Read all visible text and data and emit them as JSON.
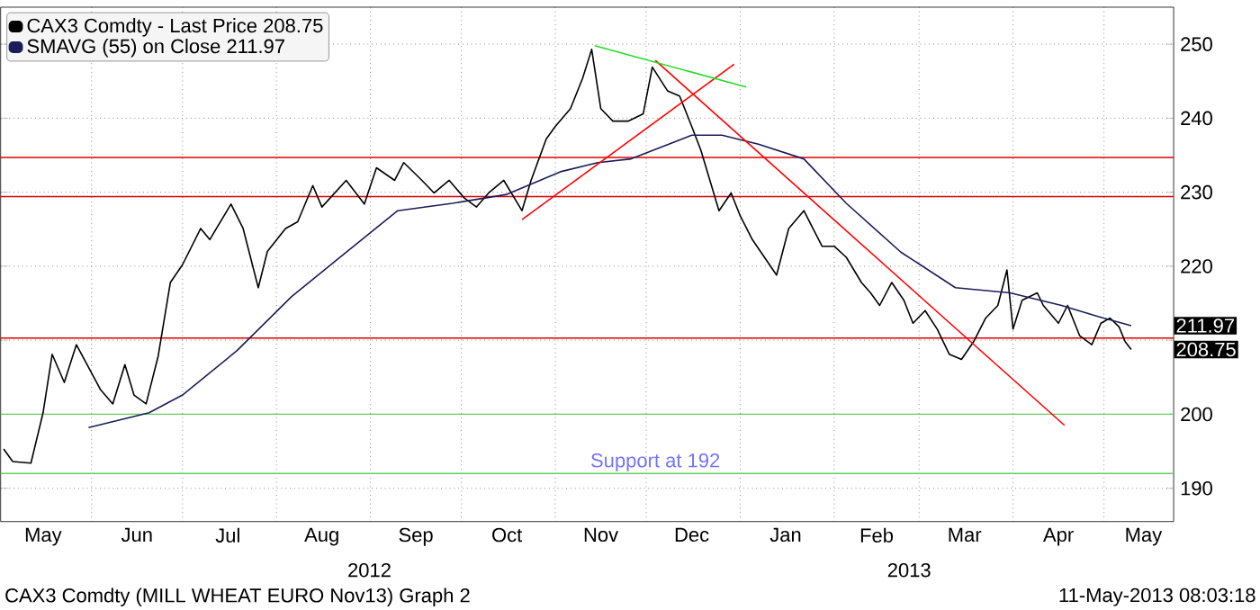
{
  "chart_data": {
    "type": "line",
    "xlim": [
      "2012-05-02",
      "2013-05-24"
    ],
    "xticks": [
      {
        "value": "2012-05-16",
        "label": "May"
      },
      {
        "value": "2012-06-01",
        "label": null
      },
      {
        "value": "2012-06-16",
        "label": "Jun"
      },
      {
        "value": "2012-07-01",
        "label": null
      },
      {
        "value": "2012-07-16",
        "label": "Jul"
      },
      {
        "value": "2012-08-01",
        "label": null
      },
      {
        "value": "2012-08-16",
        "label": "Aug"
      },
      {
        "value": "2012-09-01",
        "label": null
      },
      {
        "value": "2012-09-16",
        "label": "Sep"
      },
      {
        "value": "2012-10-01",
        "label": null
      },
      {
        "value": "2012-10-16",
        "label": "Oct"
      },
      {
        "value": "2012-11-01",
        "label": null
      },
      {
        "value": "2012-11-16",
        "label": "Nov"
      },
      {
        "value": "2012-12-01",
        "label": null
      },
      {
        "value": "2012-12-16",
        "label": "Dec"
      },
      {
        "value": "2013-01-01",
        "label": null
      },
      {
        "value": "2013-01-16",
        "label": "Jan"
      },
      {
        "value": "2013-02-01",
        "label": null
      },
      {
        "value": "2013-02-15",
        "label": "Feb"
      },
      {
        "value": "2013-03-01",
        "label": null
      },
      {
        "value": "2013-03-16",
        "label": "Mar"
      },
      {
        "value": "2013-04-01",
        "label": null
      },
      {
        "value": "2013-04-16",
        "label": "Apr"
      },
      {
        "value": "2013-05-01",
        "label": null
      },
      {
        "value": "2013-05-14",
        "label": "May"
      }
    ],
    "ylim": [
      185.5,
      255
    ],
    "yticks": [
      190,
      200,
      {
        "value": 210,
        "label": null
      },
      220,
      230,
      240,
      250
    ],
    "grid": true,
    "legend": "top left",
    "series": [
      {
        "name": "CAX3 Comdty - Last Price 208.75",
        "color": "#000000",
        "x": [
          "2012-05-03",
          "2012-05-06",
          "2012-05-12",
          "2012-05-16",
          "2012-05-19",
          "2012-05-23",
          "2012-05-27",
          "2012-06-04",
          "2012-06-08",
          "2012-06-12",
          "2012-06-15",
          "2012-06-19",
          "2012-06-23",
          "2012-06-27",
          "2012-07-01",
          "2012-07-07",
          "2012-07-10",
          "2012-07-17",
          "2012-07-21",
          "2012-07-26",
          "2012-07-29",
          "2012-08-04",
          "2012-08-08",
          "2012-08-13",
          "2012-08-16",
          "2012-08-24",
          "2012-08-30",
          "2012-09-03",
          "2012-09-09",
          "2012-09-12",
          "2012-09-18",
          "2012-09-22",
          "2012-09-27",
          "2012-10-02",
          "2012-10-06",
          "2012-10-10",
          "2012-10-15",
          "2012-10-21",
          "2012-10-24",
          "2012-10-29",
          "2012-11-01",
          "2012-11-06",
          "2012-11-10",
          "2012-11-13",
          "2012-11-16",
          "2012-11-20",
          "2012-11-25",
          "2012-11-30",
          "2012-12-03",
          "2012-12-08",
          "2012-12-12",
          "2012-12-16",
          "2012-12-19",
          "2012-12-22",
          "2012-12-25",
          "2012-12-29",
          "2013-01-01",
          "2013-01-05",
          "2013-01-09",
          "2013-01-13",
          "2013-01-17",
          "2013-01-22",
          "2013-01-25",
          "2013-01-28",
          "2013-02-01",
          "2013-02-05",
          "2013-02-10",
          "2013-02-13",
          "2013-02-16",
          "2013-02-20",
          "2013-02-24",
          "2013-02-27",
          "2013-03-03",
          "2013-03-07",
          "2013-03-11",
          "2013-03-15",
          "2013-03-19",
          "2013-03-23",
          "2013-03-27",
          "2013-03-30",
          "2013-04-01",
          "2013-04-04",
          "2013-04-09",
          "2013-04-11",
          "2013-04-16",
          "2013-04-19",
          "2013-04-23",
          "2013-04-27",
          "2013-04-30",
          "2013-05-03",
          "2013-05-06",
          "2013-05-08",
          "2013-05-10"
        ],
        "values": [
          195.3,
          193.6,
          193.4,
          200.2,
          208.1,
          204.3,
          209.4,
          203.3,
          201.4,
          206.7,
          202.6,
          201.4,
          207.9,
          217.8,
          220.2,
          225.1,
          223.6,
          228.4,
          225.1,
          217.1,
          222.0,
          225.1,
          226.0,
          230.9,
          228.0,
          231.6,
          228.4,
          233.3,
          231.6,
          234.0,
          231.6,
          229.9,
          231.6,
          229.2,
          228.0,
          229.9,
          231.6,
          227.5,
          231.6,
          237.2,
          238.9,
          241.3,
          245.4,
          249.3,
          241.3,
          239.6,
          239.6,
          240.6,
          246.9,
          243.7,
          243.0,
          238.9,
          235.7,
          231.6,
          227.5,
          229.9,
          226.8,
          223.6,
          221.2,
          218.8,
          225.1,
          227.5,
          225.1,
          222.7,
          222.7,
          221.2,
          217.8,
          216.4,
          214.7,
          217.8,
          215.4,
          212.3,
          214.0,
          211.5,
          208.1,
          207.4,
          209.8,
          213.0,
          214.7,
          219.5,
          211.5,
          215.4,
          216.4,
          214.7,
          212.3,
          214.7,
          210.6,
          209.4,
          212.3,
          213.0,
          211.8,
          209.8,
          208.75
        ]
      },
      {
        "name": "SMAVG (55) on Close 211.97",
        "color": "#1c1c5a",
        "x": [
          "2012-05-31",
          "2012-06-20",
          "2012-07-01",
          "2012-07-19",
          "2012-08-06",
          "2012-08-24",
          "2012-09-10",
          "2012-09-28",
          "2012-10-16",
          "2012-11-03",
          "2012-11-15",
          "2012-11-26",
          "2012-12-16",
          "2012-12-26",
          "2013-01-07",
          "2013-01-22",
          "2013-02-05",
          "2013-02-23",
          "2013-03-13",
          "2013-03-31",
          "2013-04-17",
          "2013-04-29",
          "2013-05-10"
        ],
        "values": [
          198.2,
          200.2,
          202.6,
          208.6,
          215.9,
          221.9,
          227.5,
          228.5,
          229.7,
          232.8,
          234.0,
          234.5,
          237.7,
          237.7,
          236.5,
          234.5,
          228.5,
          221.9,
          217.1,
          216.4,
          214.7,
          213.2,
          211.97
        ]
      },
      {
        "color": "#ff0000",
        "x": [
          "2012-10-21",
          "2012-12-30"
        ],
        "values": [
          226.3,
          247.3
        ]
      },
      {
        "color": "#ff0000",
        "x": [
          "2012-12-04",
          "2013-04-18"
        ],
        "values": [
          247.8,
          198.5
        ]
      },
      {
        "color": "#22dd22",
        "x": [
          "2012-11-14",
          "2013-01-03"
        ],
        "values": [
          249.8,
          244.2
        ]
      }
    ],
    "ref_lines": [
      {
        "axis": "y",
        "value": 234.7,
        "color": "#dd0000"
      },
      {
        "axis": "y",
        "value": 229.4,
        "color": "#dd0000"
      },
      {
        "axis": "y",
        "value": 210.3,
        "color": "#dd0000"
      },
      {
        "axis": "y",
        "value": 200,
        "color": "#66cc66"
      },
      {
        "axis": "y",
        "value": 192,
        "color": "#66cc66",
        "label": "Support at 192"
      }
    ],
    "annotations": [
      "2012",
      "2013",
      "CAX3 Comdty (MILL WHEAT EURO Nov13) Graph 2",
      "11-May-2013 08:03:18",
      {
        "text": "211.97",
        "x": "2013-05-10",
        "y": 211.97
      },
      {
        "text": "208.75",
        "x": "2013-05-10",
        "y": 208.75
      }
    ]
  }
}
